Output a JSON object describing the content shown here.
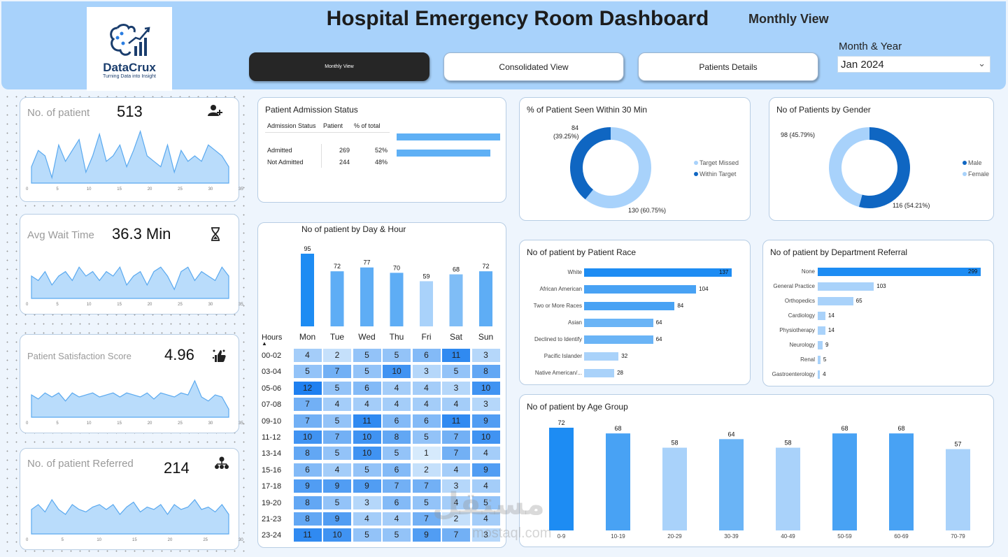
{
  "header": {
    "brand_name": "DataCrux",
    "brand_tagline": "Turning Data into Insight",
    "title": "Hospital Emergency Room Dashboard",
    "view_label": "Monthly View",
    "nav": {
      "monthly": "Monthly View",
      "consolidated": "Consolidated View",
      "patients": "Patients Details"
    },
    "month_year_label": "Month & Year",
    "month_year_value": "Jan 2024"
  },
  "kpis": {
    "patients": {
      "label": "No. of patient",
      "value": "513",
      "icon": "add-user-icon"
    },
    "wait": {
      "label": "Avg Wait Time",
      "value": "36.3 Min",
      "icon": "hourglass-icon"
    },
    "satisfaction": {
      "label": "Patient Satisfaction Score",
      "value": "4.96",
      "icon": "thumbs-up-icon"
    },
    "referred": {
      "label": "No. of patient Referred",
      "value": "214",
      "icon": "org-chart-icon"
    }
  },
  "admission": {
    "title": "Patient Admission Status",
    "headers": [
      "Admission Status",
      "Patient",
      "% of total"
    ],
    "rows": [
      {
        "status": "Admitted",
        "patients": "269",
        "pct": "52%"
      },
      {
        "status": "Not Admitted",
        "patients": "244",
        "pct": "48%"
      }
    ]
  },
  "seen30": {
    "title": "% of Patient Seen Within 30 Min",
    "label_within": "84\n(39.25%)",
    "label_within_a": "84",
    "label_within_b": "(39.25%)",
    "label_missed": "130 (60.75%)",
    "legend": [
      "Target Missed",
      "Within Target"
    ],
    "colors": {
      "missed": "#a8d2fb",
      "within": "#0f66c2"
    }
  },
  "gender": {
    "title": "No of Patients by Gender",
    "label_female": "98 (45.79%)",
    "label_male": "116 (54.21%)",
    "legend": [
      "Male",
      "Female"
    ],
    "colors": {
      "male": "#0f66c2",
      "female": "#a8d2fb"
    }
  },
  "day_hour": {
    "title": "No of patient by Day & Hour",
    "hours_label": "Hours",
    "days": [
      "Mon",
      "Tue",
      "Wed",
      "Thu",
      "Fri",
      "Sat",
      "Sun"
    ],
    "hours": [
      "00-02",
      "03-04",
      "05-06",
      "07-08",
      "09-10",
      "11-12",
      "13-14",
      "15-16",
      "17-18",
      "19-20",
      "21-23",
      "23-24"
    ],
    "matrix": [
      [
        4,
        2,
        5,
        5,
        6,
        11,
        3
      ],
      [
        5,
        7,
        5,
        10,
        3,
        5,
        8
      ],
      [
        12,
        5,
        6,
        4,
        4,
        3,
        10
      ],
      [
        7,
        4,
        4,
        4,
        4,
        4,
        3
      ],
      [
        7,
        5,
        11,
        6,
        6,
        11,
        9
      ],
      [
        10,
        7,
        10,
        8,
        5,
        7,
        10
      ],
      [
        8,
        5,
        10,
        5,
        1,
        7,
        4
      ],
      [
        6,
        4,
        5,
        6,
        2,
        4,
        9
      ],
      [
        9,
        9,
        9,
        7,
        7,
        3,
        4
      ],
      [
        8,
        5,
        3,
        6,
        5,
        4,
        5
      ],
      [
        8,
        9,
        4,
        4,
        7,
        2,
        4
      ],
      [
        11,
        10,
        5,
        5,
        9,
        7,
        3
      ]
    ]
  },
  "race": {
    "title": "No of patient by Patient Race",
    "categories": [
      "White",
      "African American",
      "Two or More Races",
      "Asian",
      "Declined to Identify",
      "Pacific Islander",
      "Native American/..."
    ],
    "values": [
      137,
      104,
      84,
      64,
      64,
      32,
      28
    ]
  },
  "department": {
    "title": "No of patient by Department Referral",
    "categories": [
      "None",
      "General Practice",
      "Orthopedics",
      "Cardiology",
      "Physiotherapy",
      "Neurology",
      "Renal",
      "Gastroenterology"
    ],
    "values": [
      299,
      103,
      65,
      14,
      14,
      9,
      5,
      4
    ]
  },
  "age": {
    "title": "No of patient by Age Group",
    "categories": [
      "0-9",
      "10-19",
      "20-29",
      "30-39",
      "40-49",
      "50-59",
      "60-69",
      "70-79"
    ],
    "values": [
      72,
      68,
      58,
      64,
      58,
      68,
      68,
      57
    ]
  },
  "chart_data": [
    {
      "type": "bar",
      "title": "No of patient by Day & Hour",
      "categories": [
        "Mon",
        "Tue",
        "Wed",
        "Thu",
        "Fri",
        "Sat",
        "Sun"
      ],
      "values": [
        95,
        72,
        77,
        70,
        59,
        68,
        72
      ]
    },
    {
      "type": "pie",
      "title": "% of Patient Seen Within 30 Min",
      "categories": [
        "Target Missed",
        "Within Target"
      ],
      "values": [
        130,
        84
      ]
    },
    {
      "type": "pie",
      "title": "No of Patients by Gender",
      "categories": [
        "Male",
        "Female"
      ],
      "values": [
        116,
        98
      ]
    },
    {
      "type": "bar",
      "title": "No of patient by Patient Race",
      "categories": [
        "White",
        "African American",
        "Two or More Races",
        "Asian",
        "Declined to Identify",
        "Pacific Islander",
        "Native American/..."
      ],
      "values": [
        137,
        104,
        84,
        64,
        64,
        32,
        28
      ]
    },
    {
      "type": "bar",
      "title": "No of patient by Department Referral",
      "categories": [
        "None",
        "General Practice",
        "Orthopedics",
        "Cardiology",
        "Physiotherapy",
        "Neurology",
        "Renal",
        "Gastroenterology"
      ],
      "values": [
        299,
        103,
        65,
        14,
        14,
        9,
        5,
        4
      ]
    },
    {
      "type": "bar",
      "title": "No of patient by Age Group",
      "categories": [
        "0-9",
        "10-19",
        "20-29",
        "30-39",
        "40-49",
        "50-59",
        "60-69",
        "70-79"
      ],
      "values": [
        72,
        68,
        58,
        64,
        58,
        68,
        68,
        57
      ]
    },
    {
      "type": "table",
      "title": "Patient Admission Status",
      "categories": [
        "Admitted",
        "Not Admitted"
      ],
      "values": [
        269,
        244
      ]
    }
  ],
  "day_bars": {
    "values": [
      95,
      72,
      77,
      70,
      59,
      68,
      72
    ]
  },
  "spark_ticks": {
    "patients": [
      "0",
      "5",
      "10",
      "15",
      "20",
      "25",
      "30",
      "35"
    ],
    "wait": [
      "0",
      "5",
      "10",
      "15",
      "20",
      "25",
      "30",
      "35"
    ],
    "satisfaction": [
      "0",
      "5",
      "10",
      "15",
      "20",
      "25",
      "30",
      "35"
    ],
    "referred": [
      "0",
      "5",
      "10",
      "15",
      "20",
      "25",
      "30"
    ]
  },
  "watermark": {
    "ar": "مستقل",
    "en": "mostaql.com"
  }
}
